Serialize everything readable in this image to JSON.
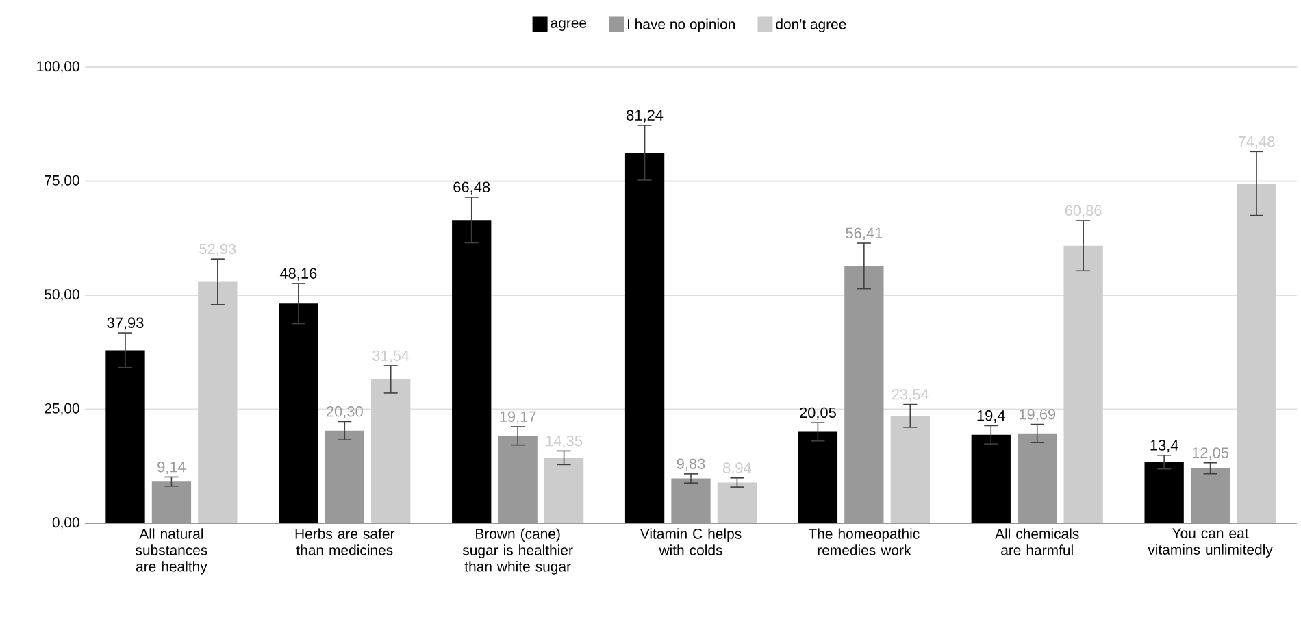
{
  "chart_data": {
    "type": "bar",
    "categories": [
      "All natural substances are healthy",
      "Herbs are safer than medicines",
      "Brown (cane) sugar is healthier than white sugar",
      "Vitamin C helps with colds",
      "The homeopathic remedies work",
      "All chemicals are harmful",
      "You can eat vitamins unlimitedly"
    ],
    "series": [
      {
        "name": "agree",
        "color": "#000000",
        "values": [
          37.93,
          48.16,
          66.48,
          81.24,
          20.05,
          19.4,
          13.4
        ],
        "errors": [
          3.8,
          4.4,
          5,
          6,
          2,
          2,
          1.5
        ],
        "value_labels": [
          "37,93",
          "48,16",
          "66,48",
          "81,24",
          "20,05",
          "19,4",
          "13,4"
        ]
      },
      {
        "name": "I have no opinion",
        "color": "#999999",
        "values": [
          9.14,
          20.3,
          19.17,
          9.83,
          56.41,
          19.69,
          12.05
        ],
        "errors": [
          1,
          2,
          2,
          1,
          5,
          2,
          1.2
        ],
        "value_labels": [
          "9,14",
          "20,30",
          "19,17",
          "9,83",
          "56,41",
          "19,69",
          "12,05"
        ]
      },
      {
        "name": "don't agree",
        "color": "#cccccc",
        "values": [
          52.93,
          31.54,
          14.35,
          8.94,
          23.54,
          60.86,
          74.48
        ],
        "errors": [
          5,
          3,
          1.5,
          1,
          2.5,
          5.5,
          7
        ],
        "value_labels": [
          "52,93",
          "31,54",
          "14,35",
          "8,94",
          "23,54",
          "60,86",
          "74,48"
        ]
      }
    ],
    "ylim": [
      0,
      100
    ],
    "yticks": [
      {
        "value": 0,
        "label": "0,00"
      },
      {
        "value": 25,
        "label": "25,00"
      },
      {
        "value": 50,
        "label": "50,00"
      },
      {
        "value": 75,
        "label": "75,00"
      },
      {
        "value": 100,
        "label": "100,00"
      }
    ],
    "grid": "y",
    "legend": "top"
  }
}
